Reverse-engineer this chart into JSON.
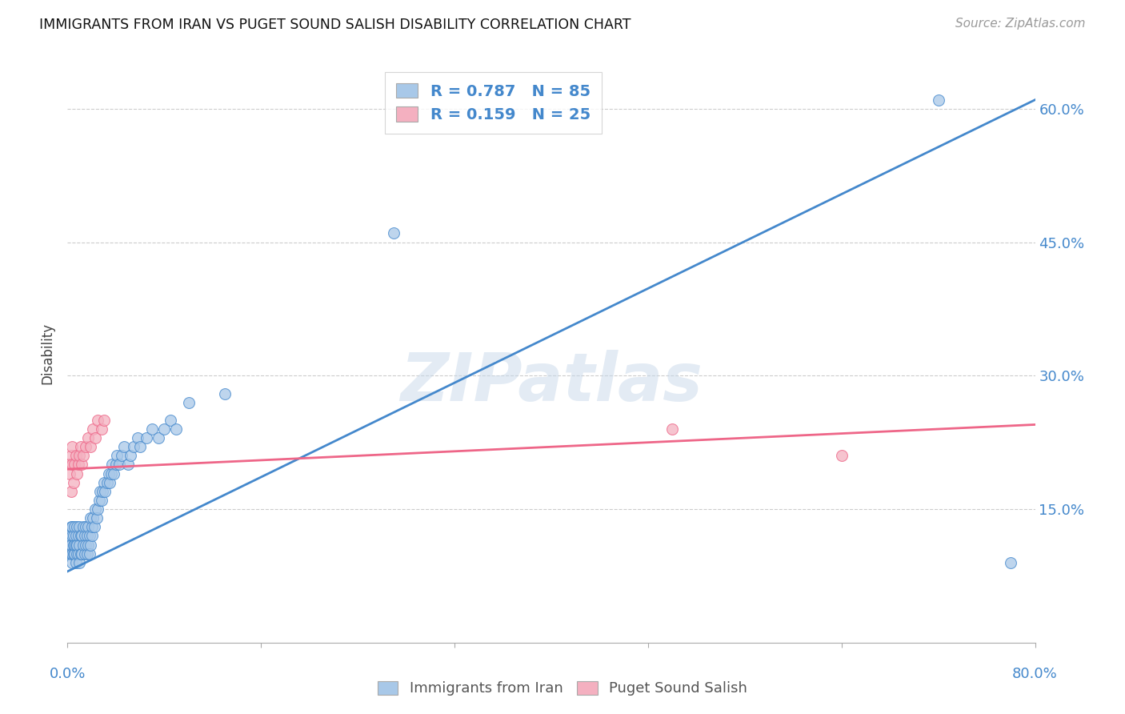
{
  "title": "IMMIGRANTS FROM IRAN VS PUGET SOUND SALISH DISABILITY CORRELATION CHART",
  "source": "Source: ZipAtlas.com",
  "ylabel": "Disability",
  "yticks": [
    "60.0%",
    "45.0%",
    "30.0%",
    "15.0%"
  ],
  "ytick_vals": [
    0.6,
    0.45,
    0.3,
    0.15
  ],
  "xlim": [
    0.0,
    0.8
  ],
  "ylim": [
    0.0,
    0.65
  ],
  "blue_R": "0.787",
  "blue_N": "85",
  "pink_R": "0.159",
  "pink_N": "25",
  "blue_color": "#A8C8E8",
  "pink_color": "#F4B0C0",
  "blue_line_color": "#4488CC",
  "pink_line_color": "#EE6688",
  "legend_label_blue": "Immigrants from Iran",
  "legend_label_pink": "Puget Sound Salish",
  "blue_scatter_x": [
    0.001,
    0.002,
    0.002,
    0.003,
    0.003,
    0.003,
    0.004,
    0.004,
    0.004,
    0.004,
    0.005,
    0.005,
    0.005,
    0.006,
    0.006,
    0.006,
    0.007,
    0.007,
    0.007,
    0.008,
    0.008,
    0.008,
    0.009,
    0.009,
    0.01,
    0.01,
    0.01,
    0.011,
    0.011,
    0.012,
    0.012,
    0.013,
    0.013,
    0.014,
    0.014,
    0.015,
    0.015,
    0.016,
    0.016,
    0.017,
    0.017,
    0.018,
    0.018,
    0.019,
    0.019,
    0.02,
    0.02,
    0.021,
    0.022,
    0.023,
    0.024,
    0.025,
    0.026,
    0.027,
    0.028,
    0.029,
    0.03,
    0.031,
    0.033,
    0.034,
    0.035,
    0.036,
    0.037,
    0.038,
    0.04,
    0.041,
    0.043,
    0.045,
    0.047,
    0.05,
    0.052,
    0.055,
    0.058,
    0.06,
    0.065,
    0.07,
    0.075,
    0.08,
    0.085,
    0.09,
    0.1,
    0.13,
    0.27,
    0.72,
    0.78
  ],
  "blue_scatter_y": [
    0.11,
    0.1,
    0.12,
    0.1,
    0.11,
    0.13,
    0.09,
    0.1,
    0.12,
    0.13,
    0.1,
    0.11,
    0.12,
    0.1,
    0.11,
    0.13,
    0.09,
    0.11,
    0.12,
    0.1,
    0.11,
    0.13,
    0.1,
    0.12,
    0.09,
    0.11,
    0.13,
    0.1,
    0.12,
    0.1,
    0.12,
    0.11,
    0.13,
    0.1,
    0.12,
    0.11,
    0.13,
    0.1,
    0.12,
    0.11,
    0.13,
    0.1,
    0.12,
    0.11,
    0.14,
    0.12,
    0.13,
    0.14,
    0.13,
    0.15,
    0.14,
    0.15,
    0.16,
    0.17,
    0.16,
    0.17,
    0.18,
    0.17,
    0.18,
    0.19,
    0.18,
    0.19,
    0.2,
    0.19,
    0.2,
    0.21,
    0.2,
    0.21,
    0.22,
    0.2,
    0.21,
    0.22,
    0.23,
    0.22,
    0.23,
    0.24,
    0.23,
    0.24,
    0.25,
    0.24,
    0.27,
    0.28,
    0.46,
    0.61,
    0.09
  ],
  "pink_scatter_x": [
    0.001,
    0.002,
    0.003,
    0.003,
    0.004,
    0.004,
    0.005,
    0.006,
    0.007,
    0.008,
    0.009,
    0.01,
    0.011,
    0.012,
    0.013,
    0.015,
    0.017,
    0.019,
    0.021,
    0.023,
    0.025,
    0.028,
    0.03,
    0.5,
    0.64
  ],
  "pink_scatter_y": [
    0.2,
    0.19,
    0.17,
    0.21,
    0.2,
    0.22,
    0.18,
    0.2,
    0.21,
    0.19,
    0.2,
    0.21,
    0.22,
    0.2,
    0.21,
    0.22,
    0.23,
    0.22,
    0.24,
    0.23,
    0.25,
    0.24,
    0.25,
    0.24,
    0.21
  ],
  "blue_line_x": [
    0.0,
    0.8
  ],
  "blue_line_y": [
    0.08,
    0.61
  ],
  "pink_line_x": [
    0.0,
    0.8
  ],
  "pink_line_y": [
    0.195,
    0.245
  ]
}
